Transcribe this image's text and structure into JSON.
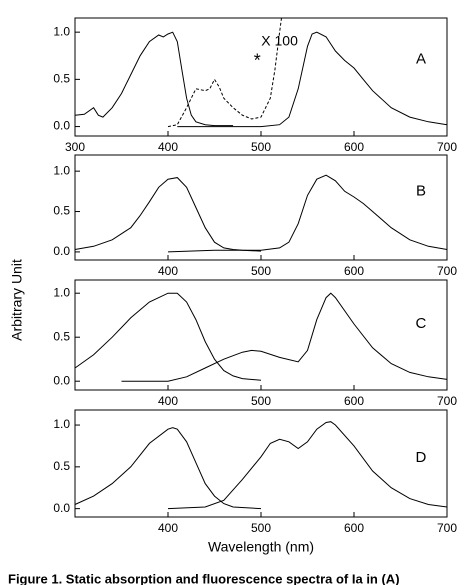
{
  "chart_data": [
    {
      "type": "line",
      "xlim": [
        300,
        700
      ],
      "xticks": [
        300,
        400,
        500,
        600,
        700
      ],
      "ylim": [
        -0.1,
        1.15
      ],
      "yticks": [
        {
          "value": 0,
          "label": "0.0"
        },
        {
          "value": 0.5,
          "label": "0.5"
        },
        {
          "value": 1,
          "label": "1.0"
        }
      ],
      "annotations": [
        "A",
        "X 100",
        "*"
      ],
      "series": [
        {
          "color": "#000000",
          "x": [
            300,
            310,
            320,
            325,
            330,
            340,
            350,
            360,
            370,
            380,
            390,
            395,
            400,
            405,
            410,
            415,
            420,
            425,
            430,
            440,
            450,
            470
          ],
          "values": [
            0.12,
            0.13,
            0.2,
            0.12,
            0.1,
            0.2,
            0.35,
            0.55,
            0.75,
            0.9,
            0.97,
            0.95,
            0.98,
            1.0,
            0.9,
            0.6,
            0.3,
            0.12,
            0.05,
            0.02,
            0.01,
            0.01
          ]
        },
        {
          "color": "#000000",
          "style": "dashed",
          "x": [
            400,
            410,
            420,
            430,
            440,
            445,
            450,
            455,
            460,
            470,
            480,
            490,
            500,
            510,
            515,
            520,
            522
          ],
          "values": [
            0.0,
            0.02,
            0.2,
            0.4,
            0.38,
            0.4,
            0.5,
            0.42,
            0.3,
            0.2,
            0.12,
            0.08,
            0.1,
            0.3,
            0.6,
            1.0,
            1.15
          ]
        },
        {
          "color": "#000000",
          "x": [
            410,
            500,
            520,
            530,
            540,
            550,
            555,
            560,
            570,
            580,
            590,
            600,
            610,
            620,
            640,
            660,
            680,
            700
          ],
          "values": [
            0.0,
            0.0,
            0.02,
            0.1,
            0.4,
            0.85,
            0.98,
            1.0,
            0.95,
            0.8,
            0.7,
            0.62,
            0.5,
            0.38,
            0.2,
            0.1,
            0.05,
            0.02
          ]
        }
      ]
    },
    {
      "type": "line",
      "xlim": [
        300,
        700
      ],
      "xticks": [
        400,
        500,
        600,
        700
      ],
      "ylim": [
        -0.1,
        1.2
      ],
      "yticks": [
        {
          "value": 0,
          "label": "0.0"
        },
        {
          "value": 0.5,
          "label": "0.5"
        },
        {
          "value": 1,
          "label": "1.0"
        }
      ],
      "annotations": [
        "B"
      ],
      "y_label": "Arbitrary Unit",
      "series": [
        {
          "color": "#000000",
          "x": [
            300,
            320,
            340,
            360,
            370,
            380,
            390,
            400,
            410,
            420,
            430,
            440,
            450,
            460,
            470,
            480,
            500
          ],
          "values": [
            0.03,
            0.07,
            0.15,
            0.3,
            0.45,
            0.62,
            0.8,
            0.9,
            0.92,
            0.8,
            0.55,
            0.3,
            0.12,
            0.05,
            0.03,
            0.02,
            0.01
          ]
        },
        {
          "color": "#000000",
          "x": [
            400,
            450,
            500,
            520,
            530,
            540,
            550,
            560,
            570,
            580,
            590,
            600,
            610,
            620,
            640,
            660,
            680,
            700
          ],
          "values": [
            0.0,
            0.02,
            0.02,
            0.05,
            0.12,
            0.35,
            0.7,
            0.9,
            0.95,
            0.88,
            0.75,
            0.68,
            0.6,
            0.5,
            0.3,
            0.15,
            0.07,
            0.03
          ]
        }
      ]
    },
    {
      "type": "line",
      "xlim": [
        300,
        700
      ],
      "xticks": [
        400,
        500,
        600,
        700
      ],
      "ylim": [
        -0.1,
        1.15
      ],
      "yticks": [
        {
          "value": 0,
          "label": "0.0"
        },
        {
          "value": 0.5,
          "label": "0.5"
        },
        {
          "value": 1,
          "label": "1.0"
        }
      ],
      "annotations": [
        "C"
      ],
      "series": [
        {
          "color": "#000000",
          "x": [
            300,
            320,
            340,
            360,
            380,
            400,
            410,
            420,
            430,
            440,
            450,
            460,
            470,
            480,
            500
          ],
          "values": [
            0.15,
            0.3,
            0.5,
            0.72,
            0.9,
            1.0,
            1.0,
            0.9,
            0.7,
            0.45,
            0.25,
            0.12,
            0.06,
            0.03,
            0.01
          ]
        },
        {
          "color": "#000000",
          "x": [
            350,
            400,
            420,
            440,
            460,
            480,
            490,
            500,
            520,
            540,
            550,
            560,
            570,
            575,
            580,
            600,
            620,
            640,
            660,
            680,
            700
          ],
          "values": [
            0.0,
            0.0,
            0.05,
            0.15,
            0.25,
            0.33,
            0.35,
            0.34,
            0.27,
            0.22,
            0.35,
            0.7,
            0.95,
            1.0,
            0.95,
            0.65,
            0.38,
            0.2,
            0.1,
            0.05,
            0.02
          ]
        }
      ]
    },
    {
      "type": "line",
      "xlim": [
        300,
        700
      ],
      "xticks": [
        400,
        500,
        600,
        700
      ],
      "ylim": [
        -0.1,
        1.18
      ],
      "yticks": [
        {
          "value": 0,
          "label": "0.0"
        },
        {
          "value": 0.5,
          "label": "0.5"
        },
        {
          "value": 1,
          "label": "1.0"
        }
      ],
      "annotations": [
        "D"
      ],
      "x_label": "Wavelength (nm)",
      "series": [
        {
          "color": "#000000",
          "x": [
            300,
            320,
            340,
            360,
            380,
            400,
            405,
            410,
            420,
            430,
            440,
            450,
            460,
            470,
            500
          ],
          "values": [
            0.05,
            0.15,
            0.3,
            0.5,
            0.78,
            0.95,
            0.97,
            0.95,
            0.8,
            0.55,
            0.3,
            0.15,
            0.06,
            0.02,
            0.0
          ]
        },
        {
          "color": "#000000",
          "x": [
            400,
            440,
            460,
            480,
            500,
            510,
            520,
            530,
            540,
            550,
            560,
            570,
            575,
            580,
            600,
            620,
            640,
            660,
            680,
            700
          ],
          "values": [
            0.0,
            0.02,
            0.1,
            0.35,
            0.62,
            0.78,
            0.83,
            0.8,
            0.72,
            0.8,
            0.95,
            1.03,
            1.04,
            1.0,
            0.75,
            0.45,
            0.25,
            0.12,
            0.05,
            0.02
          ]
        }
      ]
    }
  ],
  "caption": "Figure 1.  Static absorption and fluorescence spectra of Ia in (A)"
}
